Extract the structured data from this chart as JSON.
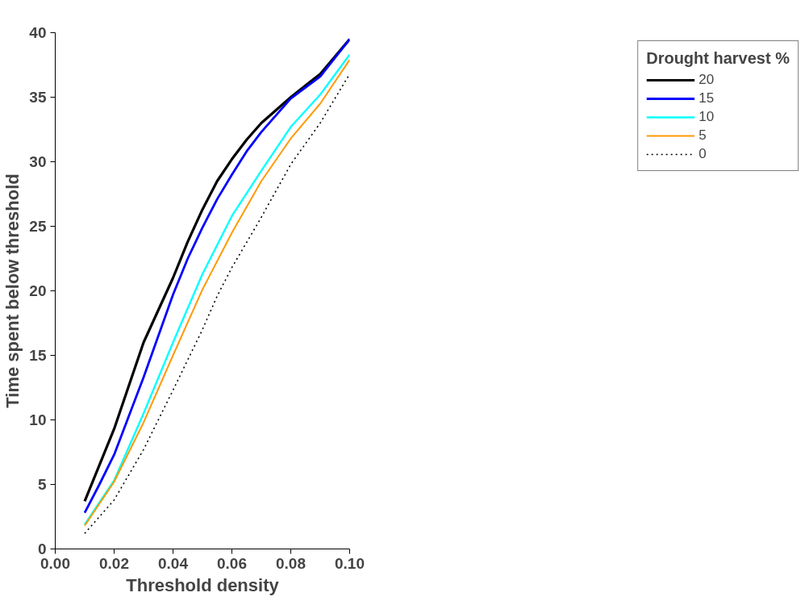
{
  "chart_data": {
    "type": "line",
    "xlabel": "Threshold density",
    "ylabel": "Time spent below threshold",
    "legend_title": "Drought harvest %",
    "legend": "right",
    "grid": false,
    "xlim": [
      0,
      0.1
    ],
    "xticks": [
      {
        "value": 0,
        "label": "0.00"
      },
      {
        "value": 0.02,
        "label": "0.02"
      },
      {
        "value": 0.04,
        "label": "0.04"
      },
      {
        "value": 0.06,
        "label": "0.06"
      },
      {
        "value": 0.08,
        "label": "0.08"
      },
      {
        "value": 0.1,
        "label": "0.10"
      }
    ],
    "ylim": [
      0,
      40
    ],
    "yticks": [
      0,
      5,
      10,
      15,
      20,
      25,
      30,
      35,
      40
    ],
    "series": [
      {
        "name": "20",
        "color": "#000000",
        "line_style": "solid",
        "x": [
          0.01,
          0.02,
          0.03,
          0.04,
          0.045,
          0.05,
          0.055,
          0.06,
          0.065,
          0.07,
          0.08,
          0.085,
          0.09,
          0.1
        ],
        "values": [
          3.7,
          9.3,
          16,
          21,
          23.8,
          26.3,
          28.5,
          30.2,
          31.7,
          33,
          35,
          35.9,
          36.8,
          39.5
        ]
      },
      {
        "name": "15",
        "color": "#0000ff",
        "line_style": "solid",
        "x": [
          0.01,
          0.015,
          0.02,
          0.025,
          0.03,
          0.035,
          0.04,
          0.045,
          0.05,
          0.055,
          0.06,
          0.065,
          0.07,
          0.08,
          0.09,
          0.1
        ],
        "values": [
          2.8,
          5,
          7.3,
          10.3,
          13.3,
          16.5,
          19.7,
          22.5,
          24.9,
          27.1,
          29,
          30.8,
          32.3,
          34.9,
          36.6,
          39.5
        ]
      },
      {
        "name": "10",
        "color": "#00ffff",
        "line_style": "solid",
        "x": [
          0.01,
          0.02,
          0.03,
          0.04,
          0.05,
          0.06,
          0.07,
          0.08,
          0.09,
          0.1
        ],
        "values": [
          1.9,
          5.3,
          10.5,
          16,
          21.3,
          25.8,
          29.3,
          32.7,
          35.2,
          38.3
        ]
      },
      {
        "name": "5",
        "color": "#ff9900",
        "line_style": "solid",
        "x": [
          0.01,
          0.02,
          0.03,
          0.04,
          0.05,
          0.06,
          0.07,
          0.08,
          0.09,
          0.1
        ],
        "values": [
          1.8,
          5.2,
          9.8,
          15,
          20.1,
          24.5,
          28.5,
          31.8,
          34.5,
          37.9
        ]
      },
      {
        "name": "0",
        "color": "#000000",
        "line_style": "dotted",
        "x": [
          0.01,
          0.02,
          0.03,
          0.04,
          0.05,
          0.055,
          0.06,
          0.07,
          0.08,
          0.09,
          0.1
        ],
        "values": [
          1.2,
          3.8,
          7.7,
          12.3,
          17,
          19.6,
          21.8,
          25.7,
          29.8,
          33,
          36.8
        ]
      }
    ]
  }
}
